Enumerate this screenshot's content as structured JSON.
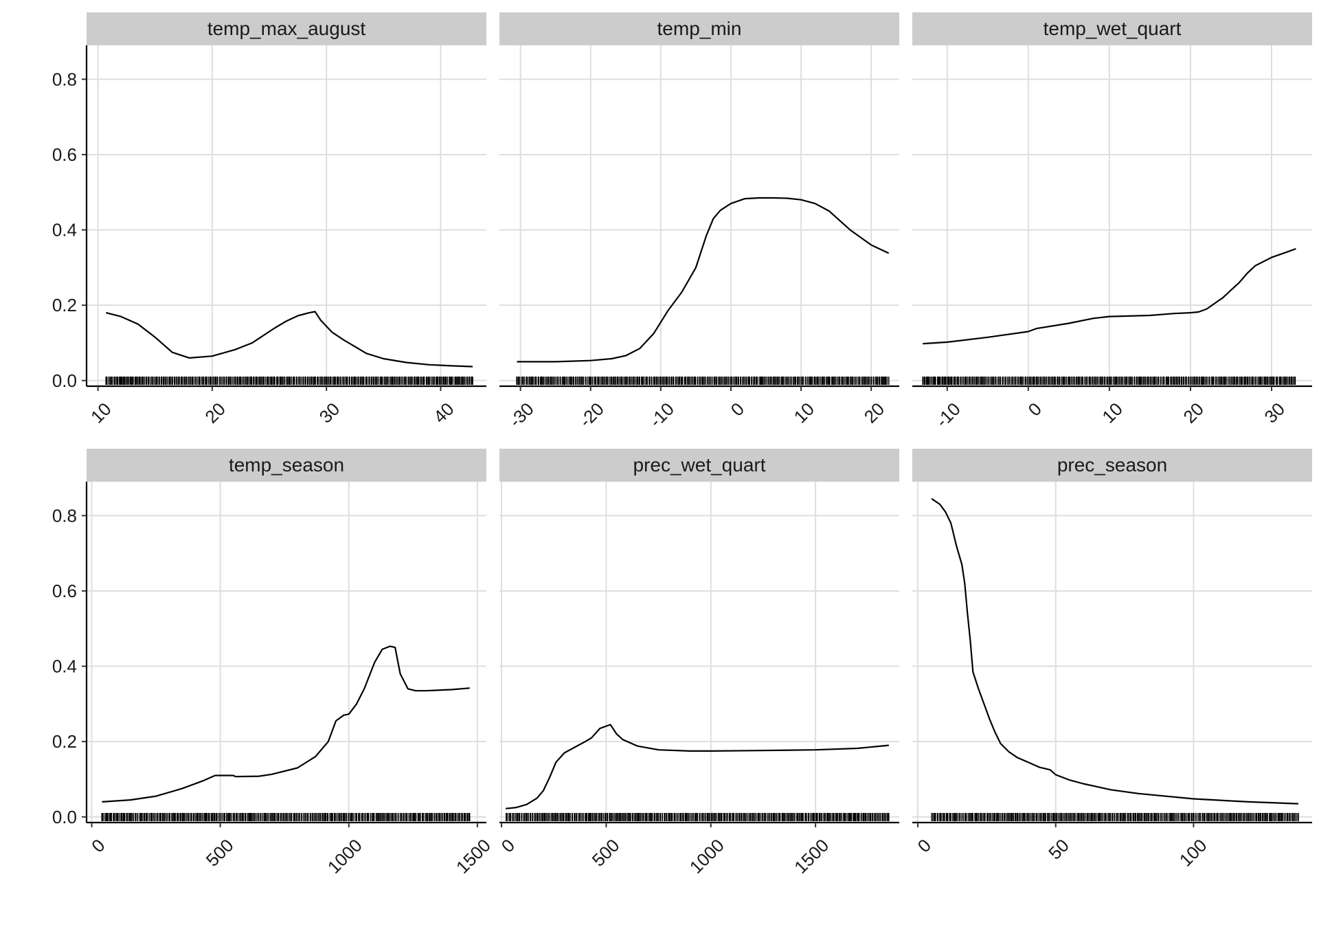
{
  "chart_data": [
    {
      "type": "line",
      "title": "temp_max_august",
      "xlim": [
        9,
        44
      ],
      "ylim": [
        -0.015,
        0.89
      ],
      "x_ticks": [
        10,
        20,
        30,
        40
      ],
      "y_ticks": [
        0.0,
        0.2,
        0.4,
        0.6,
        0.8
      ],
      "x_tick_labels": [
        "10",
        "20",
        "30",
        "40"
      ],
      "y_tick_labels": [
        "0.0",
        "0.2",
        "0.4",
        "0.6",
        "0.8"
      ],
      "x": [
        10.7,
        12,
        13.5,
        15,
        16.5,
        18,
        20,
        22,
        23.5,
        24.5,
        25.5,
        26.5,
        27.5,
        28.5,
        29,
        29.5,
        30.5,
        31.5,
        32.5,
        33.5,
        35,
        37,
        39,
        41,
        42.8
      ],
      "y": [
        0.18,
        0.17,
        0.15,
        0.115,
        0.075,
        0.06,
        0.065,
        0.082,
        0.1,
        0.12,
        0.14,
        0.158,
        0.172,
        0.18,
        0.183,
        0.16,
        0.128,
        0.108,
        0.09,
        0.072,
        0.058,
        0.048,
        0.042,
        0.039,
        0.037
      ],
      "rug": {
        "start": 10.7,
        "end": 42.8,
        "sparse": [
          10.7,
          11.7,
          12.0,
          12.3,
          12.7,
          13.0,
          13.3,
          13.6,
          13.9,
          41.5,
          41.9,
          42.3,
          42.8
        ]
      }
    },
    {
      "type": "line",
      "title": "temp_min",
      "xlim": [
        -33,
        24
      ],
      "ylim": [
        -0.015,
        0.89
      ],
      "x_ticks": [
        -30,
        -20,
        -10,
        0,
        10,
        20
      ],
      "y_ticks": [
        0.0,
        0.2,
        0.4,
        0.6,
        0.8
      ],
      "x_tick_labels": [
        "-30",
        "-20",
        "-10",
        "0",
        "10",
        "20"
      ],
      "y_tick_labels": [
        "0.0",
        "0.2",
        "0.4",
        "0.6",
        "0.8"
      ],
      "x": [
        -30.5,
        -25,
        -20,
        -17,
        -15,
        -13,
        -11,
        -9,
        -7,
        -5,
        -3.5,
        -2.5,
        -1.5,
        0,
        2,
        4,
        6,
        8,
        10,
        12,
        14,
        17,
        20,
        22.5
      ],
      "y": [
        0.05,
        0.05,
        0.053,
        0.058,
        0.066,
        0.085,
        0.125,
        0.185,
        0.235,
        0.3,
        0.385,
        0.43,
        0.452,
        0.47,
        0.483,
        0.485,
        0.485,
        0.484,
        0.48,
        0.47,
        0.45,
        0.4,
        0.36,
        0.338
      ],
      "rug": {
        "start": -30.5,
        "end": 22.5,
        "sparse": [
          -30.5,
          22.0,
          22.5
        ]
      }
    },
    {
      "type": "line",
      "title": "temp_wet_quart",
      "xlim": [
        -14.3,
        35
      ],
      "ylim": [
        -0.015,
        0.89
      ],
      "x_ticks": [
        -10,
        0,
        10,
        20,
        30
      ],
      "y_ticks": [
        0.0,
        0.2,
        0.4,
        0.6,
        0.8
      ],
      "x_tick_labels": [
        "-10",
        "0",
        "10",
        "20",
        "30"
      ],
      "y_tick_labels": [
        "0.0",
        "0.2",
        "0.4",
        "0.6",
        "0.8"
      ],
      "x": [
        -13,
        -10,
        -5,
        0,
        1,
        5,
        8,
        10,
        15,
        18,
        20,
        21,
        22,
        23,
        24,
        25,
        26,
        27,
        28,
        30,
        32,
        33
      ],
      "y": [
        0.098,
        0.102,
        0.115,
        0.13,
        0.138,
        0.152,
        0.165,
        0.17,
        0.173,
        0.178,
        0.18,
        0.182,
        0.19,
        0.205,
        0.22,
        0.24,
        0.26,
        0.285,
        0.305,
        0.327,
        0.342,
        0.35
      ],
      "rug": {
        "start": -13,
        "end": 33,
        "sparse": [
          -13.0,
          -12.4,
          -11.5,
          -11.0,
          -10.6,
          -10.2,
          -9.8,
          -9.5
        ]
      }
    },
    {
      "type": "line",
      "title": "temp_season",
      "xlim": [
        -20,
        1535
      ],
      "ylim": [
        -0.015,
        0.89
      ],
      "x_ticks": [
        0,
        500,
        1000,
        1500
      ],
      "y_ticks": [
        0.0,
        0.2,
        0.4,
        0.6,
        0.8
      ],
      "x_tick_labels": [
        "0",
        "500",
        "1000",
        "1500"
      ],
      "y_tick_labels": [
        "0.0",
        "0.2",
        "0.4",
        "0.6",
        "0.8"
      ],
      "x": [
        40,
        150,
        250,
        350,
        430,
        480,
        550,
        560,
        650,
        700,
        800,
        870,
        920,
        950,
        980,
        1000,
        1030,
        1060,
        1100,
        1130,
        1160,
        1180,
        1200,
        1230,
        1260,
        1300,
        1400,
        1470
      ],
      "y": [
        0.04,
        0.045,
        0.055,
        0.075,
        0.095,
        0.11,
        0.11,
        0.107,
        0.108,
        0.113,
        0.13,
        0.16,
        0.2,
        0.255,
        0.27,
        0.273,
        0.3,
        0.34,
        0.41,
        0.445,
        0.453,
        0.45,
        0.38,
        0.34,
        0.335,
        0.335,
        0.338,
        0.342
      ],
      "rug": {
        "start": 40,
        "end": 1470,
        "sparse": [
          40,
          55,
          70,
          1460,
          1470
        ]
      }
    },
    {
      "type": "line",
      "title": "prec_wet_quart",
      "xlim": [
        -10,
        1900
      ],
      "ylim": [
        -0.015,
        0.89
      ],
      "x_ticks": [
        0,
        500,
        1000,
        1500
      ],
      "y_ticks": [
        0.0,
        0.2,
        0.4,
        0.6,
        0.8
      ],
      "x_tick_labels": [
        "0",
        "500",
        "1000",
        "1500"
      ],
      "y_tick_labels": [
        "0.0",
        "0.2",
        "0.4",
        "0.6",
        "0.8"
      ],
      "x": [
        20,
        70,
        120,
        170,
        200,
        230,
        260,
        300,
        350,
        400,
        430,
        470,
        520,
        550,
        580,
        650,
        750,
        900,
        1000,
        1200,
        1500,
        1700,
        1850
      ],
      "y": [
        0.022,
        0.025,
        0.033,
        0.05,
        0.07,
        0.105,
        0.145,
        0.17,
        0.185,
        0.2,
        0.21,
        0.235,
        0.245,
        0.22,
        0.205,
        0.188,
        0.178,
        0.175,
        0.175,
        0.176,
        0.178,
        0.182,
        0.19
      ],
      "rug": {
        "start": 20,
        "end": 1850,
        "sparse": [
          1520,
          1560,
          1600,
          1640,
          1680,
          1700,
          1730,
          1760,
          1850
        ]
      }
    },
    {
      "type": "line",
      "title": "prec_season",
      "xlim": [
        -2,
        143
      ],
      "ylim": [
        -0.015,
        0.89
      ],
      "x_ticks": [
        0,
        50,
        100
      ],
      "y_ticks": [
        0.0,
        0.2,
        0.4,
        0.6,
        0.8
      ],
      "x_tick_labels": [
        "0",
        "50",
        "100"
      ],
      "y_tick_labels": [
        "0.0",
        "0.2",
        "0.4",
        "0.6",
        "0.8"
      ],
      "x": [
        5,
        8,
        10,
        12,
        14,
        16,
        17,
        18,
        19,
        20,
        22,
        24,
        26,
        28,
        30,
        33,
        36,
        40,
        44,
        48,
        50,
        55,
        60,
        70,
        80,
        100,
        120,
        138
      ],
      "y": [
        0.845,
        0.83,
        0.81,
        0.78,
        0.72,
        0.67,
        0.62,
        0.54,
        0.47,
        0.385,
        0.34,
        0.3,
        0.26,
        0.225,
        0.195,
        0.173,
        0.158,
        0.145,
        0.132,
        0.125,
        0.112,
        0.098,
        0.088,
        0.072,
        0.062,
        0.048,
        0.04,
        0.035
      ],
      "rug": {
        "start": 5,
        "end": 138,
        "sparse": [
          128,
          132,
          138
        ]
      }
    }
  ]
}
